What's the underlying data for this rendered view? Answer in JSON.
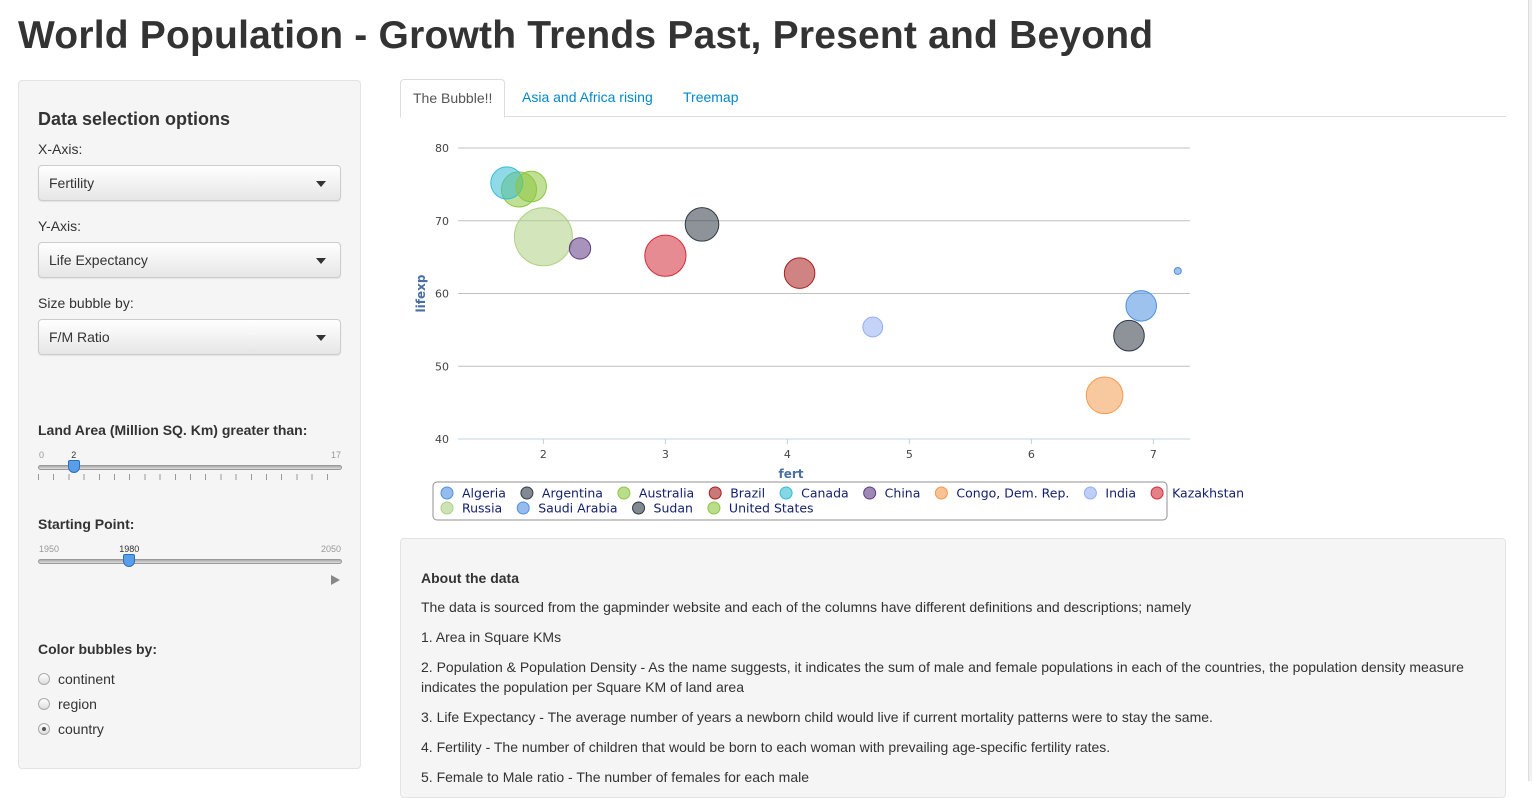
{
  "page": {
    "title": "World Population - Growth Trends Past, Present and Beyond"
  },
  "sidebar": {
    "heading": "Data selection options",
    "x_axis": {
      "label": "X-Axis:",
      "value": "Fertility"
    },
    "y_axis": {
      "label": "Y-Axis:",
      "value": "Life Expectancy"
    },
    "size_by": {
      "label": "Size bubble by:",
      "value": "F/M Ratio"
    },
    "land_area": {
      "label": "Land Area (Million SQ. Km) greater than:",
      "min": "0",
      "max": "17",
      "value": "2",
      "value_num": 2,
      "min_num": 0,
      "max_num": 17
    },
    "start_point": {
      "label": "Starting Point:",
      "min": "1950",
      "max": "2050",
      "value": "1980",
      "value_num": 1980,
      "min_num": 1950,
      "max_num": 2050
    },
    "color_by": {
      "label": "Color bubbles by:",
      "options": [
        "continent",
        "region",
        "country"
      ],
      "selected": "country"
    }
  },
  "tabs": [
    {
      "label": "The Bubble!!",
      "active": true
    },
    {
      "label": "Asia and Africa rising",
      "active": false
    },
    {
      "label": "Treemap",
      "active": false
    }
  ],
  "chart_data": {
    "type": "scatter",
    "xlabel": "fert",
    "ylabel": "lifexp",
    "xlim": [
      1.3,
      7.3
    ],
    "ylim": [
      40,
      80
    ],
    "xticks": [
      2,
      3,
      4,
      5,
      6,
      7
    ],
    "yticks": [
      40,
      50,
      60,
      70,
      80
    ],
    "grid": "horizontal",
    "legend_position": "bottom",
    "series": [
      {
        "name": "Algeria",
        "color": "#4f8fe0",
        "x": 6.9,
        "y": 58.3,
        "size": 1.0
      },
      {
        "name": "Argentina",
        "color": "#2f3a46",
        "x": 3.3,
        "y": 69.5,
        "size": 1.1
      },
      {
        "name": "Australia",
        "color": "#8cc640",
        "x": 1.9,
        "y": 74.7,
        "size": 1.0
      },
      {
        "name": "Brazil",
        "color": "#a81e1e",
        "x": 4.1,
        "y": 62.8,
        "size": 1.0
      },
      {
        "name": "Canada",
        "color": "#34bcd6",
        "x": 1.7,
        "y": 75.2,
        "size": 1.05
      },
      {
        "name": "China",
        "color": "#5e3b84",
        "x": 2.3,
        "y": 66.2,
        "size": 0.7
      },
      {
        "name": "Congo, Dem. Rep.",
        "color": "#f39a4e",
        "x": 6.6,
        "y": 46.0,
        "size": 1.2
      },
      {
        "name": "India",
        "color": "#93aef0",
        "x": 4.7,
        "y": 55.4,
        "size": 0.65
      },
      {
        "name": "Kazakhstan",
        "color": "#d42b3a",
        "x": 3.0,
        "y": 65.2,
        "size": 1.35
      },
      {
        "name": "Russia",
        "color": "#aed083",
        "x": 2.0,
        "y": 67.8,
        "size": 1.9
      },
      {
        "name": "Saudi Arabia",
        "color": "#4f8fe0",
        "x": 7.2,
        "y": 63.1,
        "size": 0.22
      },
      {
        "name": "Sudan",
        "color": "#2f3a46",
        "x": 6.8,
        "y": 54.2,
        "size": 1.0
      },
      {
        "name": "United States",
        "color": "#8cc640",
        "x": 1.8,
        "y": 74.3,
        "size": 1.15
      }
    ]
  },
  "about": {
    "heading": "About the data",
    "intro": "The data is sourced from the gapminder website and each of the columns have different definitions and descriptions; namely",
    "items": [
      "1. Area in Square KMs",
      "2. Population & Population Density - As the name suggests, it indicates the sum of male and female populations in each of the countries, the population density measure indicates the population per Square KM of land area",
      "3. Life Expectancy - The average number of years a newborn child would live if current mortality patterns were to stay the same.",
      "4. Fertility - The number of children that would be born to each woman with prevailing age-specific fertility rates.",
      "5. Female to Male ratio - The number of females for each male"
    ]
  }
}
